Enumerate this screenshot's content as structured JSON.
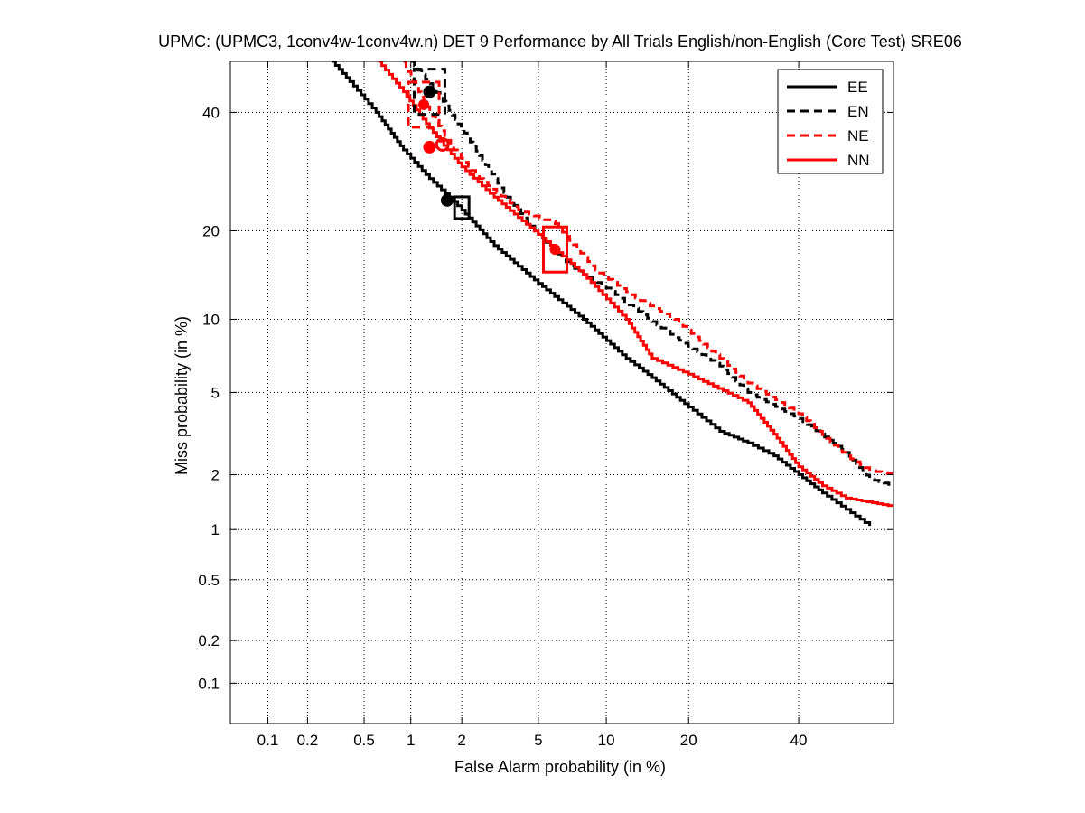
{
  "chart_data": {
    "type": "line",
    "title": "UPMC: (UPMC3, 1conv4w-1conv4w.n) DET 9 Performance by All Trials English/non-English (Core Test) SRE06",
    "xlabel": "False Alarm probability (in %)",
    "ylabel": "Miss probability (in %)",
    "x_scale": "probit",
    "y_scale": "probit",
    "xlim": [
      0.05,
      60
    ],
    "ylim": [
      0.05,
      50
    ],
    "x_ticks": [
      0.1,
      0.2,
      0.5,
      1,
      2,
      5,
      10,
      20,
      40
    ],
    "x_tick_labels": [
      "0.1",
      "0.2",
      "0.5",
      "1",
      "2",
      "5",
      "10",
      "20",
      "40"
    ],
    "y_ticks": [
      0.1,
      0.2,
      0.5,
      1,
      2,
      5,
      10,
      20,
      40
    ],
    "y_tick_labels": [
      "0.1",
      "0.2",
      "0.5",
      "1",
      "2",
      "5",
      "10",
      "20",
      "40"
    ],
    "grid": true,
    "legend_position": "top-right",
    "series": [
      {
        "name": "EE",
        "color": "#000000",
        "style": "solid",
        "points": [
          [
            0.3,
            50
          ],
          [
            0.4,
            46
          ],
          [
            0.6,
            40
          ],
          [
            0.9,
            33
          ],
          [
            1.3,
            28
          ],
          [
            1.7,
            25
          ],
          [
            2.0,
            23
          ],
          [
            3.0,
            18
          ],
          [
            5.0,
            13.5
          ],
          [
            8.0,
            10
          ],
          [
            12.0,
            7
          ],
          [
            15.0,
            5.8
          ],
          [
            20.0,
            4.3
          ],
          [
            25.0,
            3.3
          ],
          [
            30.0,
            2.9
          ],
          [
            35.0,
            2.5
          ],
          [
            40.0,
            2.0
          ],
          [
            45.0,
            1.6
          ],
          [
            50.0,
            1.3
          ],
          [
            55.0,
            1.05
          ]
        ],
        "actual_marker": {
          "x": 1.65,
          "y": 24.5,
          "shape": "circle"
        },
        "min_dcf_marker": {
          "x": 2.0,
          "y": 23.5,
          "shape": "square"
        }
      },
      {
        "name": "EN",
        "color": "#000000",
        "style": "dashed",
        "points": [
          [
            1.0,
            50
          ],
          [
            1.5,
            43
          ],
          [
            2.5,
            32
          ],
          [
            3.5,
            25
          ],
          [
            5.0,
            19.5
          ],
          [
            7.0,
            15.5
          ],
          [
            10.0,
            13
          ],
          [
            15.0,
            9.8
          ],
          [
            18.0,
            8.5
          ],
          [
            25.0,
            6.5
          ],
          [
            30.0,
            5
          ],
          [
            40.0,
            3.8
          ],
          [
            50.0,
            2.6
          ],
          [
            55.0,
            1.9
          ],
          [
            60.0,
            1.75
          ]
        ],
        "actual_marker": {
          "x": 1.3,
          "y": 44,
          "shape": "circle"
        },
        "min_dcf_marker": {
          "x": 1.3,
          "y": 44,
          "shape": "box"
        }
      },
      {
        "name": "NE",
        "color": "#ff0000",
        "style": "dashed",
        "points": [
          [
            0.9,
            50
          ],
          [
            1.2,
            42
          ],
          [
            1.8,
            33
          ],
          [
            2.5,
            28
          ],
          [
            4.0,
            23
          ],
          [
            6.0,
            21
          ],
          [
            9.0,
            15
          ],
          [
            13.0,
            12
          ],
          [
            18.0,
            10
          ],
          [
            25.0,
            7
          ],
          [
            30.0,
            5.5
          ],
          [
            40.0,
            4
          ],
          [
            50.0,
            2.5
          ],
          [
            55.0,
            2.1
          ],
          [
            60.0,
            2.0
          ]
        ],
        "actual_marker": {
          "x": 1.55,
          "y": 34,
          "shape": "circle-open"
        },
        "min_dcf_marker": {
          "x": 1.2,
          "y": 41.5,
          "shape": "box"
        }
      },
      {
        "name": "NN",
        "color": "#ff0000",
        "style": "solid",
        "points": [
          [
            0.62,
            50
          ],
          [
            0.9,
            44
          ],
          [
            1.3,
            37
          ],
          [
            2.0,
            30
          ],
          [
            3.0,
            25
          ],
          [
            5.0,
            19.5
          ],
          [
            8.0,
            14.5
          ],
          [
            12.0,
            10
          ],
          [
            15.0,
            7
          ],
          [
            20.0,
            6
          ],
          [
            30.0,
            4.5
          ],
          [
            35.0,
            3.2
          ],
          [
            40.0,
            2.2
          ],
          [
            45.0,
            1.75
          ],
          [
            50.0,
            1.5
          ],
          [
            60.0,
            1.35
          ]
        ],
        "actual_marker": {
          "x": 1.3,
          "y": 33.5,
          "shape": "circle"
        },
        "min_dcf_marker": {
          "x": 6.0,
          "y": 17.5,
          "shape": "box"
        }
      }
    ]
  }
}
